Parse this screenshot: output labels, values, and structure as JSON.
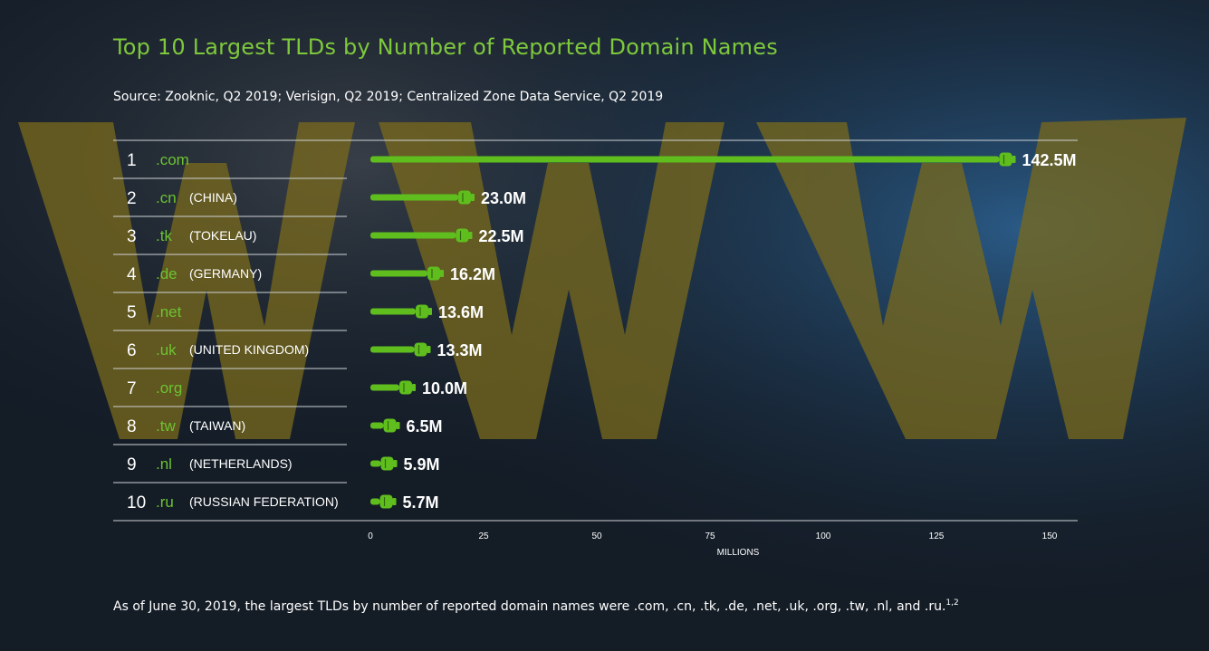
{
  "header": {
    "title": "Top 10 Largest TLDs by Number of Reported Domain Names",
    "source": "Source: Zooknic, Q2 2019; Verisign, Q2 2019; Centralized Zone Data Service, Q2 2019"
  },
  "footer": {
    "note": "As of June 30, 2019, the largest TLDs by number of reported domain names were .com, .cn, .tk, .de, .net, .uk, .org, .tw, .nl, and .ru.",
    "note_ref": "1,2"
  },
  "background": {
    "watermark": "WWW"
  },
  "colors": {
    "title": "#7ec83c",
    "bar": "#5fbe1e",
    "tld": "#6cc332"
  },
  "chart_data": {
    "type": "bar",
    "orientation": "horizontal",
    "title": "Top 10 Largest TLDs by Number of Reported Domain Names",
    "xlabel": "MILLIONS",
    "xlim": [
      0,
      150
    ],
    "xticks": [
      0,
      25,
      50,
      75,
      100,
      125,
      150
    ],
    "grid": false,
    "categories": [
      ".com",
      ".cn",
      ".tk",
      ".de",
      ".net",
      ".uk",
      ".org",
      ".tw",
      ".nl",
      ".ru"
    ],
    "rows": [
      {
        "rank": "1",
        "tld": ".com",
        "country": "",
        "value": 142.5,
        "label": "142.5M"
      },
      {
        "rank": "2",
        "tld": ".cn",
        "country": "(CHINA)",
        "value": 23.0,
        "label": "23.0M"
      },
      {
        "rank": "3",
        "tld": ".tk",
        "country": "(TOKELAU)",
        "value": 22.5,
        "label": "22.5M"
      },
      {
        "rank": "4",
        "tld": ".de",
        "country": "(GERMANY)",
        "value": 16.2,
        "label": "16.2M"
      },
      {
        "rank": "5",
        "tld": ".net",
        "country": "",
        "value": 13.6,
        "label": "13.6M"
      },
      {
        "rank": "6",
        "tld": ".uk",
        "country": "(UNITED KINGDOM)",
        "value": 13.3,
        "label": "13.3M"
      },
      {
        "rank": "7",
        "tld": ".org",
        "country": "",
        "value": 10.0,
        "label": "10.0M"
      },
      {
        "rank": "8",
        "tld": ".tw",
        "country": "(TAIWAN)",
        "value": 6.5,
        "label": "6.5M"
      },
      {
        "rank": "9",
        "tld": ".nl",
        "country": "(NETHERLANDS)",
        "value": 5.9,
        "label": "5.9M"
      },
      {
        "rank": "10",
        "tld": ".ru",
        "country": "(RUSSIAN FEDERATION)",
        "value": 5.7,
        "label": "5.7M"
      }
    ]
  }
}
